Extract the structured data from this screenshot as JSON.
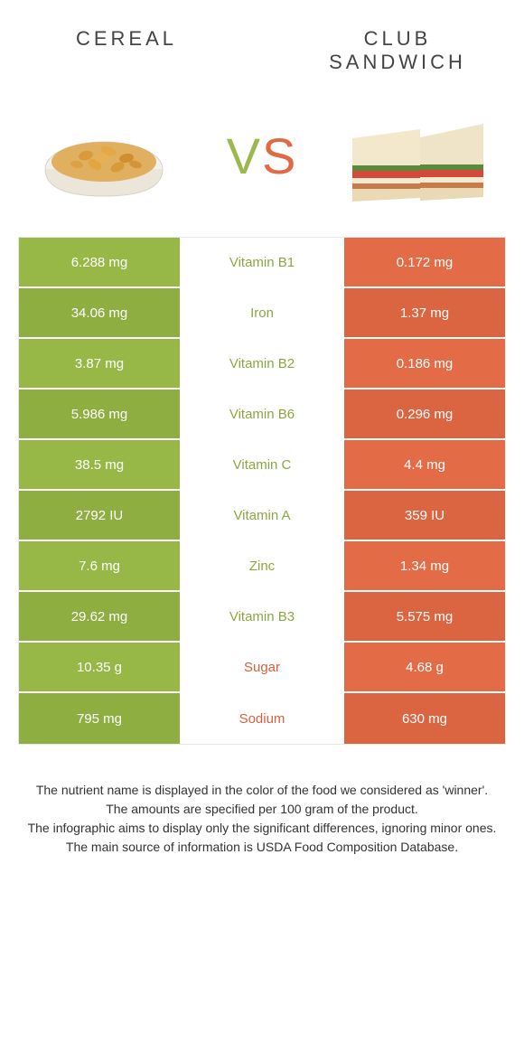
{
  "header": {
    "left_title": "CEREAL",
    "right_title": "CLUB SANDWICH",
    "vs_v": "V",
    "vs_s": "S"
  },
  "colors": {
    "left": "#97b846",
    "left_alt": "#8fae41",
    "right": "#e36b45",
    "right_alt": "#dc6541",
    "nutrient_green": "#8aa83f",
    "nutrient_orange": "#d6603c",
    "border": "#e8e8e8"
  },
  "rows": [
    {
      "left": "6.288 mg",
      "mid": "Vitamin B1",
      "mid_color": "#8aa83f",
      "right": "0.172 mg"
    },
    {
      "left": "34.06 mg",
      "mid": "Iron",
      "mid_color": "#8aa83f",
      "right": "1.37 mg"
    },
    {
      "left": "3.87 mg",
      "mid": "Vitamin B2",
      "mid_color": "#8aa83f",
      "right": "0.186 mg"
    },
    {
      "left": "5.986 mg",
      "mid": "Vitamin B6",
      "mid_color": "#8aa83f",
      "right": "0.296 mg"
    },
    {
      "left": "38.5 mg",
      "mid": "Vitamin C",
      "mid_color": "#8aa83f",
      "right": "4.4 mg"
    },
    {
      "left": "2792 IU",
      "mid": "Vitamin A",
      "mid_color": "#8aa83f",
      "right": "359 IU"
    },
    {
      "left": "7.6 mg",
      "mid": "Zinc",
      "mid_color": "#8aa83f",
      "right": "1.34 mg"
    },
    {
      "left": "29.62 mg",
      "mid": "Vitamin B3",
      "mid_color": "#8aa83f",
      "right": "5.575 mg"
    },
    {
      "left": "10.35 g",
      "mid": "Sugar",
      "mid_color": "#d6603c",
      "right": "4.68 g"
    },
    {
      "left": "795 mg",
      "mid": "Sodium",
      "mid_color": "#d6603c",
      "right": "630 mg"
    }
  ],
  "footnotes": {
    "line1": "The nutrient name is displayed in the color of the food we considered as 'winner'.",
    "line2": "The amounts are specified per 100 gram of the product.",
    "line3": "The infographic aims to display only the significant differences, ignoring minor ones.",
    "line4": "The main source of information is USDA Food Composition Database."
  }
}
